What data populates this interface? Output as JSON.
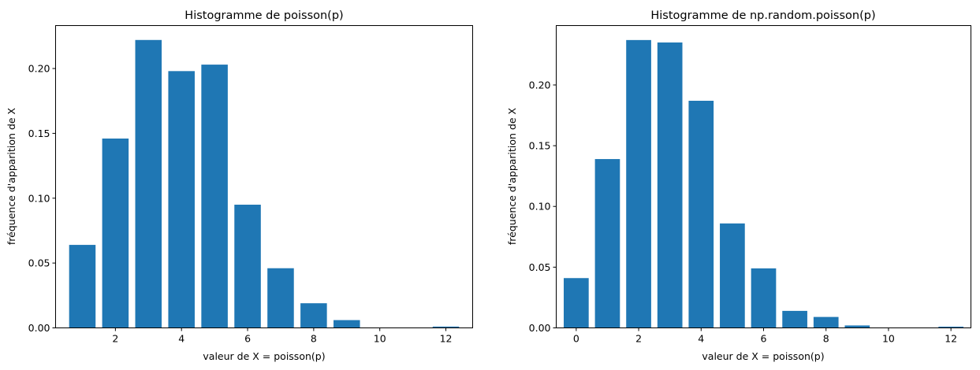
{
  "chart_data": [
    {
      "type": "bar",
      "title": "Histogramme de poisson(p)",
      "xlabel": "valeur de X = poisson(p)",
      "ylabel": "fréquence d'apparition de X",
      "x": [
        1,
        2,
        3,
        4,
        5,
        6,
        7,
        8,
        9,
        10,
        11,
        12
      ],
      "values": [
        0.064,
        0.146,
        0.222,
        0.198,
        0.203,
        0.095,
        0.046,
        0.019,
        0.006,
        0.0,
        0.0,
        0.001
      ],
      "xlim": [
        0.19,
        12.81
      ],
      "ylim": [
        0,
        0.2331
      ],
      "xticks": [
        2,
        4,
        6,
        8,
        10,
        12
      ],
      "xtick_labels": [
        "2",
        "4",
        "6",
        "8",
        "10",
        "12"
      ],
      "yticks": [
        0.0,
        0.05,
        0.1,
        0.15,
        0.2
      ],
      "ytick_labels": [
        "0.00",
        "0.05",
        "0.10",
        "0.15",
        "0.20"
      ],
      "bar_width": 0.8,
      "color": "#1f77b4"
    },
    {
      "type": "bar",
      "title": "Histogramme de np.random.poisson(p)",
      "xlabel": "valeur de X = poisson(p)",
      "ylabel": "fréquence d'apparition de X",
      "x": [
        0,
        1,
        2,
        3,
        4,
        5,
        6,
        7,
        8,
        9,
        10,
        11,
        12
      ],
      "values": [
        0.041,
        0.139,
        0.237,
        0.235,
        0.187,
        0.086,
        0.049,
        0.014,
        0.009,
        0.002,
        0.0,
        0.0,
        0.001
      ],
      "xlim": [
        -0.64,
        12.64
      ],
      "ylim": [
        0,
        0.2489
      ],
      "xticks": [
        0,
        2,
        4,
        6,
        8,
        10,
        12
      ],
      "xtick_labels": [
        "0",
        "2",
        "4",
        "6",
        "8",
        "10",
        "12"
      ],
      "yticks": [
        0.0,
        0.05,
        0.1,
        0.15,
        0.2
      ],
      "ytick_labels": [
        "0.00",
        "0.05",
        "0.10",
        "0.15",
        "0.20"
      ],
      "bar_width": 0.8,
      "color": "#1f77b4"
    }
  ]
}
